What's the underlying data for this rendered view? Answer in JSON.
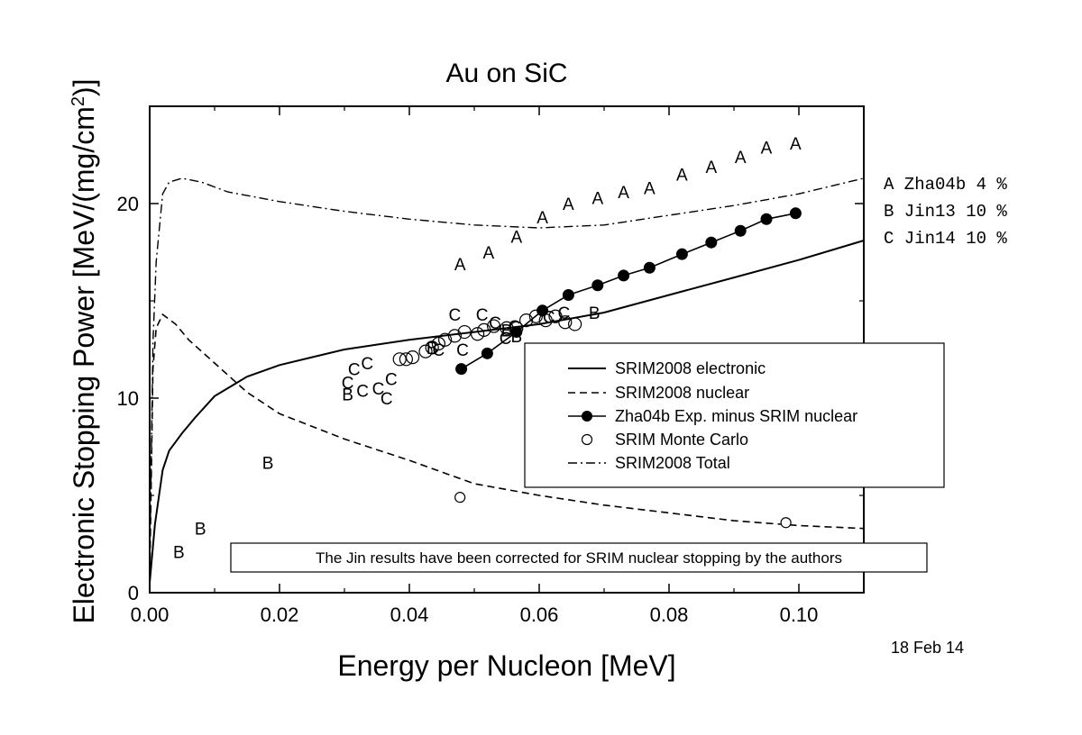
{
  "chart_data": {
    "type": "scatter",
    "title": "Au on SiC",
    "xlabel": "Energy per Nucleon [MeV]",
    "ylabel_main": "Electronic Stopping Power [MeV/(mg/cm",
    "ylabel_sup": "2",
    "ylabel_end": ")]",
    "xlim": [
      0,
      0.11
    ],
    "ylim": [
      0,
      25
    ],
    "x_ticks": [
      0.0,
      0.02,
      0.04,
      0.06,
      0.08,
      0.1
    ],
    "x_tick_labels": [
      "0.00",
      "0.02",
      "0.04",
      "0.06",
      "0.08",
      "0.10"
    ],
    "y_ticks": [
      0,
      10,
      20
    ],
    "y_tick_labels": [
      "0",
      "10",
      "20"
    ],
    "legend_position": "center-right",
    "series": [
      {
        "name": "SRIM2008 electronic",
        "style": "solid",
        "x": [
          0.0,
          0.0008,
          0.002,
          0.003,
          0.005,
          0.007,
          0.01,
          0.015,
          0.02,
          0.025,
          0.03,
          0.04,
          0.05,
          0.06,
          0.07,
          0.08,
          0.09,
          0.1,
          0.11
        ],
        "y": [
          0.5,
          3.5,
          6.3,
          7.3,
          8.2,
          9.0,
          10.1,
          11.1,
          11.7,
          12.1,
          12.5,
          13.0,
          13.4,
          13.8,
          14.4,
          15.3,
          16.2,
          17.1,
          18.1
        ]
      },
      {
        "name": "SRIM2008 nuclear",
        "style": "dashed",
        "x": [
          0.0,
          0.0005,
          0.001,
          0.002,
          0.004,
          0.006,
          0.01,
          0.015,
          0.02,
          0.03,
          0.04,
          0.05,
          0.06,
          0.07,
          0.08,
          0.09,
          0.1,
          0.11
        ],
        "y": [
          0.5,
          11.5,
          13.6,
          14.3,
          13.8,
          13.0,
          11.8,
          10.3,
          9.2,
          7.9,
          6.8,
          5.6,
          5.0,
          4.5,
          4.1,
          3.7,
          3.45,
          3.3
        ]
      },
      {
        "name": "Zha04b Exp. minus SRIM nuclear",
        "style": "line-filled-circles",
        "x": [
          0.048,
          0.052,
          0.0565,
          0.0605,
          0.0645,
          0.069,
          0.073,
          0.077,
          0.082,
          0.0865,
          0.091,
          0.095,
          0.0995
        ],
        "y": [
          11.5,
          12.3,
          13.4,
          14.5,
          15.3,
          15.8,
          16.3,
          16.7,
          17.4,
          18.0,
          18.6,
          19.2,
          19.5
        ]
      },
      {
        "name": "SRIM Monte Carlo",
        "style": "open-circles",
        "x": [
          0.0478,
          0.098
        ],
        "y": [
          4.9,
          3.6
        ]
      },
      {
        "name": "SRIM2008 Total",
        "style": "dash-dot",
        "x": [
          0.0,
          0.0005,
          0.001,
          0.002,
          0.003,
          0.005,
          0.008,
          0.012,
          0.02,
          0.03,
          0.04,
          0.05,
          0.06,
          0.07,
          0.08,
          0.09,
          0.1,
          0.11
        ],
        "y": [
          1.0,
          12.8,
          17.0,
          20.5,
          21.1,
          21.3,
          21.1,
          20.6,
          20.1,
          19.6,
          19.2,
          18.9,
          18.75,
          18.9,
          19.4,
          19.9,
          20.5,
          21.3
        ]
      }
    ],
    "hollow_circle_points": {
      "x": [
        0.0385,
        0.0395,
        0.0405,
        0.0425,
        0.0435,
        0.0445,
        0.0455,
        0.047,
        0.0485,
        0.0505,
        0.0515,
        0.053,
        0.055,
        0.0565,
        0.058,
        0.0595,
        0.061,
        0.0625,
        0.064,
        0.0655
      ],
      "y": [
        12.0,
        12.0,
        12.1,
        12.4,
        12.6,
        12.8,
        13.0,
        13.2,
        13.4,
        13.3,
        13.5,
        13.7,
        13.6,
        13.6,
        14.0,
        14.2,
        14.0,
        14.2,
        13.9,
        13.8
      ]
    },
    "letter_points": {
      "A": {
        "x": [
          0.0478,
          0.0522,
          0.0565,
          0.0605,
          0.0645,
          0.069,
          0.073,
          0.077,
          0.082,
          0.0865,
          0.091,
          0.095,
          0.0995
        ],
        "y": [
          16.9,
          17.5,
          18.3,
          19.3,
          20.0,
          20.3,
          20.6,
          20.8,
          21.5,
          21.9,
          22.4,
          22.9,
          23.1
        ]
      },
      "B": {
        "x": [
          0.0045,
          0.0078,
          0.0182,
          0.0305,
          0.0435,
          0.055,
          0.0565,
          0.0685
        ],
        "y": [
          2.1,
          3.3,
          6.7,
          10.2,
          12.6,
          13.5,
          13.2,
          14.4
        ]
      },
      "C": {
        "x": [
          0.0305,
          0.0315,
          0.0328,
          0.0335,
          0.0352,
          0.0365,
          0.0372,
          0.0445,
          0.047,
          0.0482,
          0.0512,
          0.0532,
          0.0548,
          0.0562,
          0.0615,
          0.0638
        ],
        "y": [
          10.8,
          11.5,
          10.4,
          11.8,
          10.5,
          10.0,
          11.0,
          12.5,
          14.3,
          12.5,
          14.3,
          13.9,
          13.1,
          13.7,
          14.2,
          14.4
        ]
      }
    },
    "letter_key": [
      {
        "letter": "A",
        "text": "A Zha04b 4 %"
      },
      {
        "letter": "B",
        "text": "B Jin13 10 %"
      },
      {
        "letter": "C",
        "text": "C Jin14 10 %"
      }
    ],
    "annotation": "The Jin results have been corrected for SRIM nuclear stopping by the authors",
    "date_stamp": "18 Feb 14"
  }
}
